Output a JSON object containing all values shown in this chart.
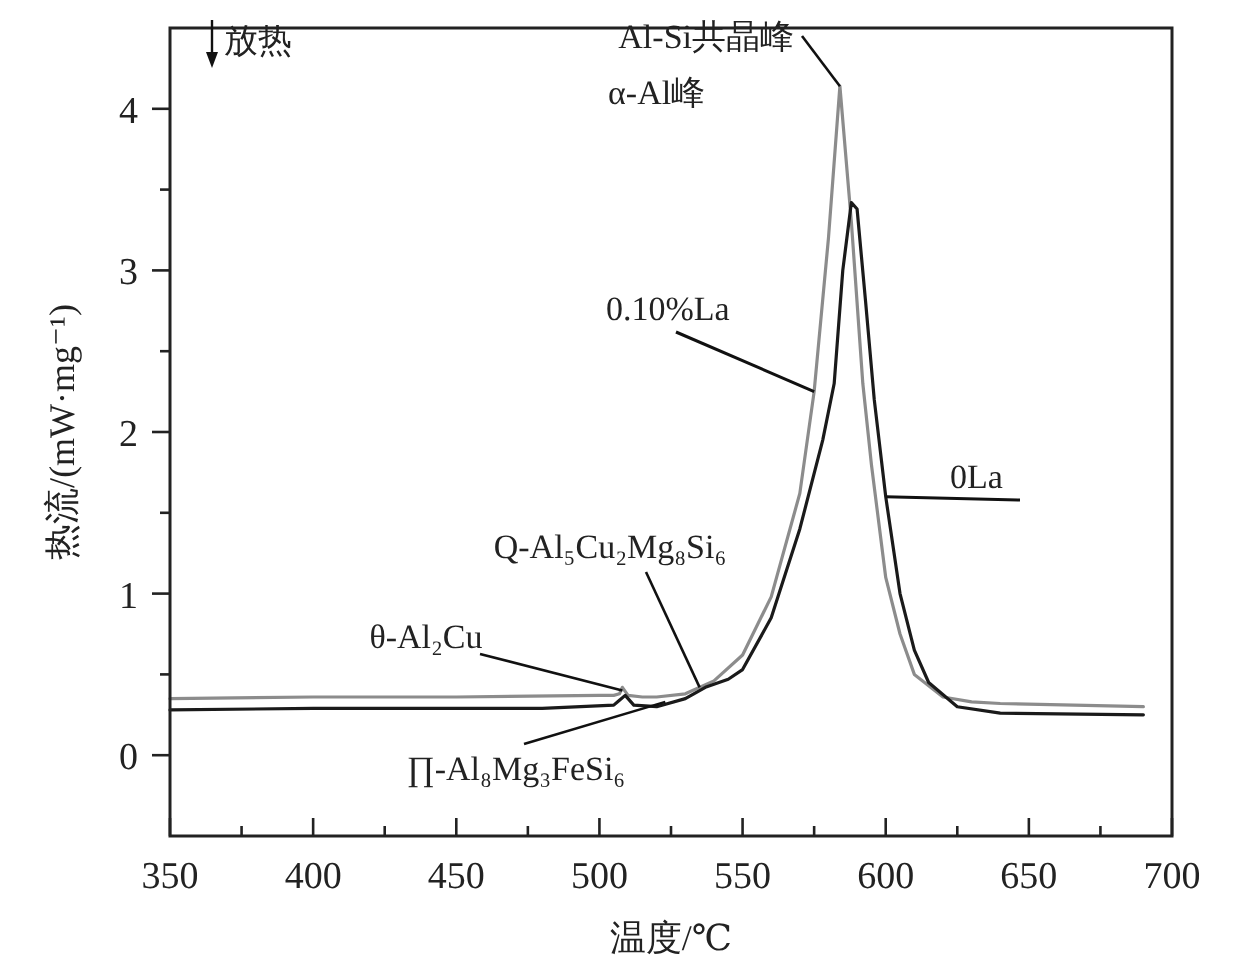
{
  "chart_data": {
    "type": "line",
    "xlabel": "温度/℃",
    "ylabel": "热流/(mW·mg⁻¹)",
    "xlim": [
      350,
      700
    ],
    "ylim": [
      -0.5,
      4.5
    ],
    "xticks": [
      350,
      {
        "value": 375,
        "label": null
      },
      400,
      {
        "value": 425,
        "label": null
      },
      450,
      {
        "value": 475,
        "label": null
      },
      500,
      {
        "value": 525,
        "label": null
      },
      550,
      {
        "value": 575,
        "label": null
      },
      600,
      {
        "value": 625,
        "label": null
      },
      650,
      {
        "value": 675,
        "label": null
      },
      700
    ],
    "yticks": [
      0,
      {
        "value": 0.5,
        "label": null
      },
      1,
      {
        "value": 1.5,
        "label": null
      },
      2,
      {
        "value": 2.5,
        "label": null
      },
      3,
      {
        "value": 3.5,
        "label": null
      },
      4
    ],
    "grid": false,
    "legend": false,
    "marker": "none",
    "line_style": "solid",
    "series": [
      {
        "name": "0.10%La",
        "color": "#8c8c8c",
        "x": [
          350,
          400,
          450,
          500,
          505,
          507,
          508,
          510,
          515,
          520,
          530,
          540,
          550,
          560,
          570,
          575,
          580,
          584,
          588,
          592,
          595,
          600,
          605,
          610,
          620,
          630,
          640,
          690
        ],
        "values": [
          0.35,
          0.36,
          0.36,
          0.37,
          0.37,
          0.38,
          0.42,
          0.37,
          0.36,
          0.36,
          0.38,
          0.46,
          0.62,
          0.98,
          1.62,
          2.25,
          3.2,
          4.14,
          3.3,
          2.3,
          1.8,
          1.1,
          0.75,
          0.5,
          0.36,
          0.33,
          0.32,
          0.3
        ]
      },
      {
        "name": "0La",
        "color": "#1a1a1a",
        "x": [
          350,
          400,
          450,
          480,
          505,
          507,
          509,
          512,
          520,
          530,
          537,
          545,
          550,
          560,
          570,
          578,
          582,
          585,
          588,
          590,
          593,
          596,
          600,
          605,
          610,
          615,
          625,
          640,
          690
        ],
        "values": [
          0.28,
          0.29,
          0.29,
          0.29,
          0.31,
          0.34,
          0.37,
          0.31,
          0.3,
          0.35,
          0.42,
          0.47,
          0.53,
          0.85,
          1.4,
          1.95,
          2.3,
          3.0,
          3.42,
          3.38,
          2.8,
          2.2,
          1.6,
          1.0,
          0.65,
          0.45,
          0.3,
          0.26,
          0.25
        ]
      }
    ],
    "annotations": [
      "放热",
      {
        "text": "Al-Si共晶峰",
        "x": 584,
        "y": 4.14
      },
      "α-Al峰",
      {
        "text": "θ-Al₂Cu",
        "x": 508,
        "y": 0.4
      },
      {
        "text": "Q-Al₅Cu₂Mg₈Si₆",
        "x": 535,
        "y": 0.42
      },
      {
        "text": "∏-Al₈Mg₃FeSi₆",
        "x": 523,
        "y": 0.33
      }
    ]
  }
}
